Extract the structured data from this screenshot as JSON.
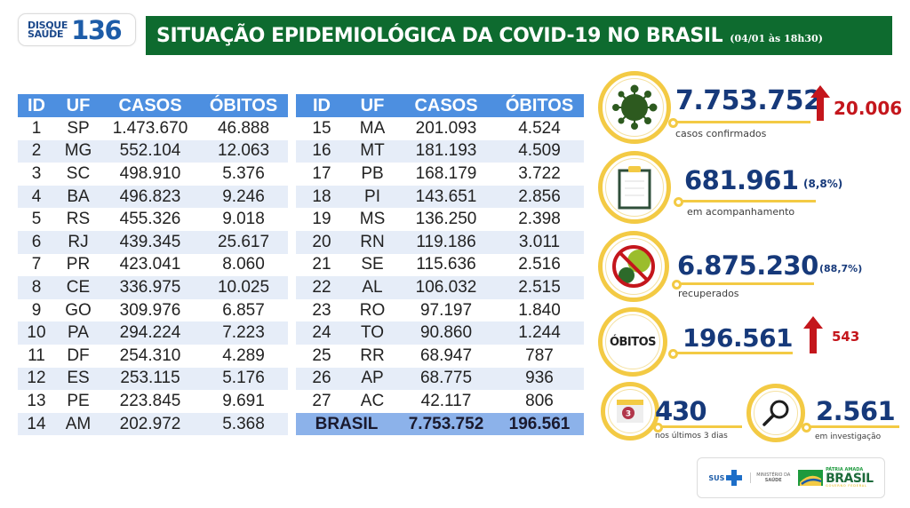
{
  "header": {
    "logo_small_line1": "DISQUE",
    "logo_small_line2": "SAÚDE",
    "logo_number": "136",
    "title": "SITUAÇÃO EPIDEMIOLÓGICA DA COVID-19 NO BRASIL",
    "date": "(04/01 às 18h30)"
  },
  "colors": {
    "title_bar": "#0e6b2f",
    "table_header": "#4d8fe0",
    "table_alt_row": "#e6edf8",
    "table_total": "#8cb2ea",
    "ring": "#f3ca44",
    "stat_number": "#16397a",
    "increase": "#c4161c"
  },
  "table": {
    "columns": [
      "ID",
      "UF",
      "CASOS",
      "ÓBITOS"
    ],
    "left_rows": [
      {
        "id": "1",
        "uf": "SP",
        "casos": "1.473.670",
        "obitos": "46.888"
      },
      {
        "id": "2",
        "uf": "MG",
        "casos": "552.104",
        "obitos": "12.063"
      },
      {
        "id": "3",
        "uf": "SC",
        "casos": "498.910",
        "obitos": "5.376"
      },
      {
        "id": "4",
        "uf": "BA",
        "casos": "496.823",
        "obitos": "9.246"
      },
      {
        "id": "5",
        "uf": "RS",
        "casos": "455.326",
        "obitos": "9.018"
      },
      {
        "id": "6",
        "uf": "RJ",
        "casos": "439.345",
        "obitos": "25.617"
      },
      {
        "id": "7",
        "uf": "PR",
        "casos": "423.041",
        "obitos": "8.060"
      },
      {
        "id": "8",
        "uf": "CE",
        "casos": "336.975",
        "obitos": "10.025"
      },
      {
        "id": "9",
        "uf": "GO",
        "casos": "309.976",
        "obitos": "6.857"
      },
      {
        "id": "10",
        "uf": "PA",
        "casos": "294.224",
        "obitos": "7.223"
      },
      {
        "id": "11",
        "uf": "DF",
        "casos": "254.310",
        "obitos": "4.289"
      },
      {
        "id": "12",
        "uf": "ES",
        "casos": "253.115",
        "obitos": "5.176"
      },
      {
        "id": "13",
        "uf": "PE",
        "casos": "223.845",
        "obitos": "9.691"
      },
      {
        "id": "14",
        "uf": "AM",
        "casos": "202.972",
        "obitos": "5.368"
      }
    ],
    "right_rows": [
      {
        "id": "15",
        "uf": "MA",
        "casos": "201.093",
        "obitos": "4.524"
      },
      {
        "id": "16",
        "uf": "MT",
        "casos": "181.193",
        "obitos": "4.509"
      },
      {
        "id": "17",
        "uf": "PB",
        "casos": "168.179",
        "obitos": "3.722"
      },
      {
        "id": "18",
        "uf": "PI",
        "casos": "143.651",
        "obitos": "2.856"
      },
      {
        "id": "19",
        "uf": "MS",
        "casos": "136.250",
        "obitos": "2.398"
      },
      {
        "id": "20",
        "uf": "RN",
        "casos": "119.186",
        "obitos": "3.011"
      },
      {
        "id": "21",
        "uf": "SE",
        "casos": "115.636",
        "obitos": "2.516"
      },
      {
        "id": "22",
        "uf": "AL",
        "casos": "106.032",
        "obitos": "2.515"
      },
      {
        "id": "23",
        "uf": "RO",
        "casos": "97.197",
        "obitos": "1.840"
      },
      {
        "id": "24",
        "uf": "TO",
        "casos": "90.860",
        "obitos": "1.244"
      },
      {
        "id": "25",
        "uf": "RR",
        "casos": "68.947",
        "obitos": "787"
      },
      {
        "id": "26",
        "uf": "AP",
        "casos": "68.775",
        "obitos": "936"
      },
      {
        "id": "27",
        "uf": "AC",
        "casos": "42.117",
        "obitos": "806"
      }
    ],
    "total": {
      "label": "BRASIL",
      "casos": "7.753.752",
      "obitos": "196.561"
    }
  },
  "stats": {
    "confirmed": {
      "icon": "virus-icon",
      "value": "7.753.752",
      "increase": "20.006",
      "label": "casos confirmados"
    },
    "monitoring": {
      "icon": "clipboard-icon",
      "value": "681.961",
      "percent": "(8,8%)",
      "label": "em acompanhamento"
    },
    "recovered": {
      "icon": "no-virus-icon",
      "value": "6.875.230",
      "percent": "(88,7%)",
      "label": "recuperados"
    },
    "deaths": {
      "icon_label": "ÓBITOS",
      "value": "196.561",
      "increase": "543"
    },
    "last3days": {
      "icon": "calendar-icon",
      "calendar_number": "3",
      "value": "430",
      "label": "nos últimos 3 dias"
    },
    "investigation": {
      "icon": "magnifier-icon",
      "value": "2.561",
      "label": "em investigação"
    }
  },
  "footer": {
    "sus": "SUS",
    "ministry_line1": "MINISTÉRIO DA",
    "ministry_line2": "SAÚDE",
    "patria": "PÁTRIA AMADA",
    "brasil": "BRASIL",
    "governo": "GOVERNO FEDERAL"
  }
}
